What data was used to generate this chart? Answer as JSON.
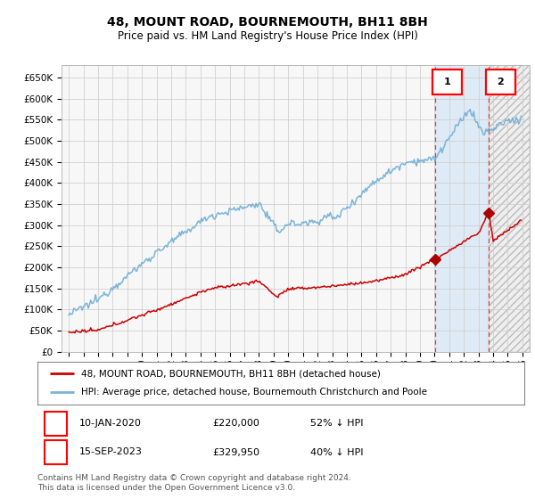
{
  "title": "48, MOUNT ROAD, BOURNEMOUTH, BH11 8BH",
  "subtitle": "Price paid vs. HM Land Registry's House Price Index (HPI)",
  "legend_line1": "48, MOUNT ROAD, BOURNEMOUTH, BH11 8BH (detached house)",
  "legend_line2": "HPI: Average price, detached house, Bournemouth Christchurch and Poole",
  "footnote": "Contains HM Land Registry data © Crown copyright and database right 2024.\nThis data is licensed under the Open Government Licence v3.0.",
  "transaction1_date": "10-JAN-2020",
  "transaction1_price": "£220,000",
  "transaction1_hpi": "52% ↓ HPI",
  "transaction2_date": "15-SEP-2023",
  "transaction2_price": "£329,950",
  "transaction2_hpi": "40% ↓ HPI",
  "hpi_color": "#7ab4d8",
  "price_color": "#cc0000",
  "marker_color": "#aa0000",
  "transaction1_x": 2020.04,
  "transaction1_y": 220000,
  "transaction2_x": 2023.71,
  "transaction2_y": 329950,
  "highlight_start_x": 2020.04,
  "highlight_end_x": 2023.71,
  "hatch_start_x": 2023.71,
  "hatch_end_x": 2026.5,
  "ylim_min": 0,
  "ylim_max": 680000,
  "xlim_start": 1994.5,
  "xlim_end": 2026.5,
  "yticks": [
    0,
    50000,
    100000,
    150000,
    200000,
    250000,
    300000,
    350000,
    400000,
    450000,
    500000,
    550000,
    600000,
    650000
  ],
  "ytick_labels": [
    "£0",
    "£50K",
    "£100K",
    "£150K",
    "£200K",
    "£250K",
    "£300K",
    "£350K",
    "£400K",
    "£450K",
    "£500K",
    "£550K",
    "£600K",
    "£650K"
  ],
  "xtick_years": [
    1995,
    1996,
    1997,
    1998,
    1999,
    2000,
    2001,
    2002,
    2003,
    2004,
    2005,
    2006,
    2007,
    2008,
    2009,
    2010,
    2011,
    2012,
    2013,
    2014,
    2015,
    2016,
    2017,
    2018,
    2019,
    2020,
    2021,
    2022,
    2023,
    2024,
    2025,
    2026
  ],
  "plot_bg_color": "#f7f7f7",
  "grid_color": "#d0d0d0",
  "highlight_color": "#deeaf5",
  "hatch_bg_color": "#ebebeb"
}
